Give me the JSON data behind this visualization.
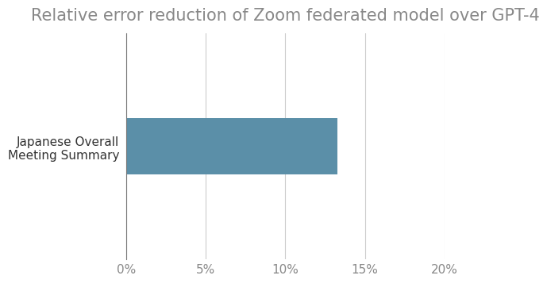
{
  "title": "Relative error reduction of Zoom federated model over GPT-4",
  "categories": [
    "Japanese Overall\nMeeting Summary"
  ],
  "values": [
    0.133
  ],
  "bar_color": "#5b8fa8",
  "xlim": [
    0,
    0.2
  ],
  "xticks": [
    0.0,
    0.05,
    0.1,
    0.15,
    0.2
  ],
  "xtick_labels": [
    "0%",
    "5%",
    "10%",
    "15%",
    "20%"
  ],
  "background_color": "#ffffff",
  "title_fontsize": 15,
  "tick_fontsize": 11,
  "label_fontsize": 11,
  "grid_color": "#cccccc",
  "title_color": "#888888",
  "tick_color": "#888888",
  "label_color": "#333333",
  "bar_height": 0.45
}
